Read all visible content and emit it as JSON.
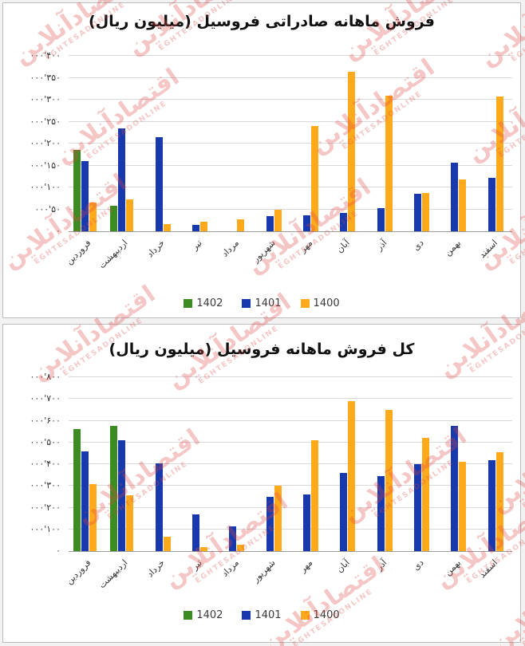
{
  "watermark": {
    "brand_fa": "اقتصادآنلاین",
    "brand_en": "EGHTESADONLINE",
    "color": "#e04545"
  },
  "chart_data": [
    {
      "type": "bar",
      "title": "فروش ماهانه صادراتی فروسیل (میلیون ریال)",
      "categories": [
        "فروردین",
        "اردیبهشت",
        "خرداد",
        "تیر",
        "مرداد",
        "شهریور",
        "مهر",
        "آبان",
        "آذر",
        "دی",
        "بهمن",
        "اسفند"
      ],
      "series": [
        {
          "name": "1402",
          "color": "#3d8c21",
          "values": [
            185000,
            59000,
            0,
            0,
            0,
            0,
            0,
            0,
            0,
            0,
            0,
            0
          ]
        },
        {
          "name": "1401",
          "color": "#1839ad",
          "values": [
            160000,
            234000,
            215000,
            14000,
            0,
            34000,
            36000,
            42000,
            53000,
            85000,
            156000,
            121000
          ]
        },
        {
          "name": "1400",
          "color": "#ffa91c",
          "values": [
            66000,
            72000,
            17000,
            22000,
            27000,
            49000,
            240000,
            363000,
            310000,
            88000,
            118000,
            308000
          ]
        }
      ],
      "ylim": [
        0,
        400000
      ],
      "ytick_step": 50000,
      "ytick_labels": [
        "۴۰۰'۰۰۰",
        "۳۵۰'۰۰۰",
        "۳۰۰'۰۰۰",
        "۲۵۰'۰۰۰",
        "۲۰۰'۰۰۰",
        "۱۵۰'۰۰۰",
        "۱۰۰'۰۰۰",
        "۵۰'۰۰۰",
        "۰"
      ],
      "grid": true,
      "legend_position": "bottom"
    },
    {
      "type": "bar",
      "title": "کل فروش ماهانه فروسیل (میلیون ریال)",
      "categories": [
        "فروردین",
        "اردیبهشت",
        "خرداد",
        "تیر",
        "مرداد",
        "شهریور",
        "مهر",
        "آبان",
        "آذر",
        "دی",
        "بهمن",
        "اسفند"
      ],
      "series": [
        {
          "name": "1402",
          "color": "#3d8c21",
          "values": [
            560000,
            578000,
            0,
            0,
            0,
            0,
            0,
            0,
            0,
            0,
            0,
            0
          ]
        },
        {
          "name": "1401",
          "color": "#1839ad",
          "values": [
            460000,
            510000,
            405000,
            170000,
            115000,
            250000,
            260000,
            358000,
            345000,
            400000,
            575000,
            420000
          ]
        },
        {
          "name": "1400",
          "color": "#ffa91c",
          "values": [
            310000,
            258000,
            65000,
            20000,
            30000,
            300000,
            510000,
            690000,
            650000,
            520000,
            410000,
            455000
          ]
        }
      ],
      "ylim": [
        0,
        800000
      ],
      "ytick_step": 100000,
      "ytick_labels": [
        "۸۰۰'۰۰۰",
        "۷۰۰'۰۰۰",
        "۶۰۰'۰۰۰",
        "۵۰۰'۰۰۰",
        "۴۰۰'۰۰۰",
        "۳۰۰'۰۰۰",
        "۲۰۰'۰۰۰",
        "۱۰۰'۰۰۰",
        "۰"
      ],
      "grid": true,
      "legend_position": "bottom"
    }
  ]
}
